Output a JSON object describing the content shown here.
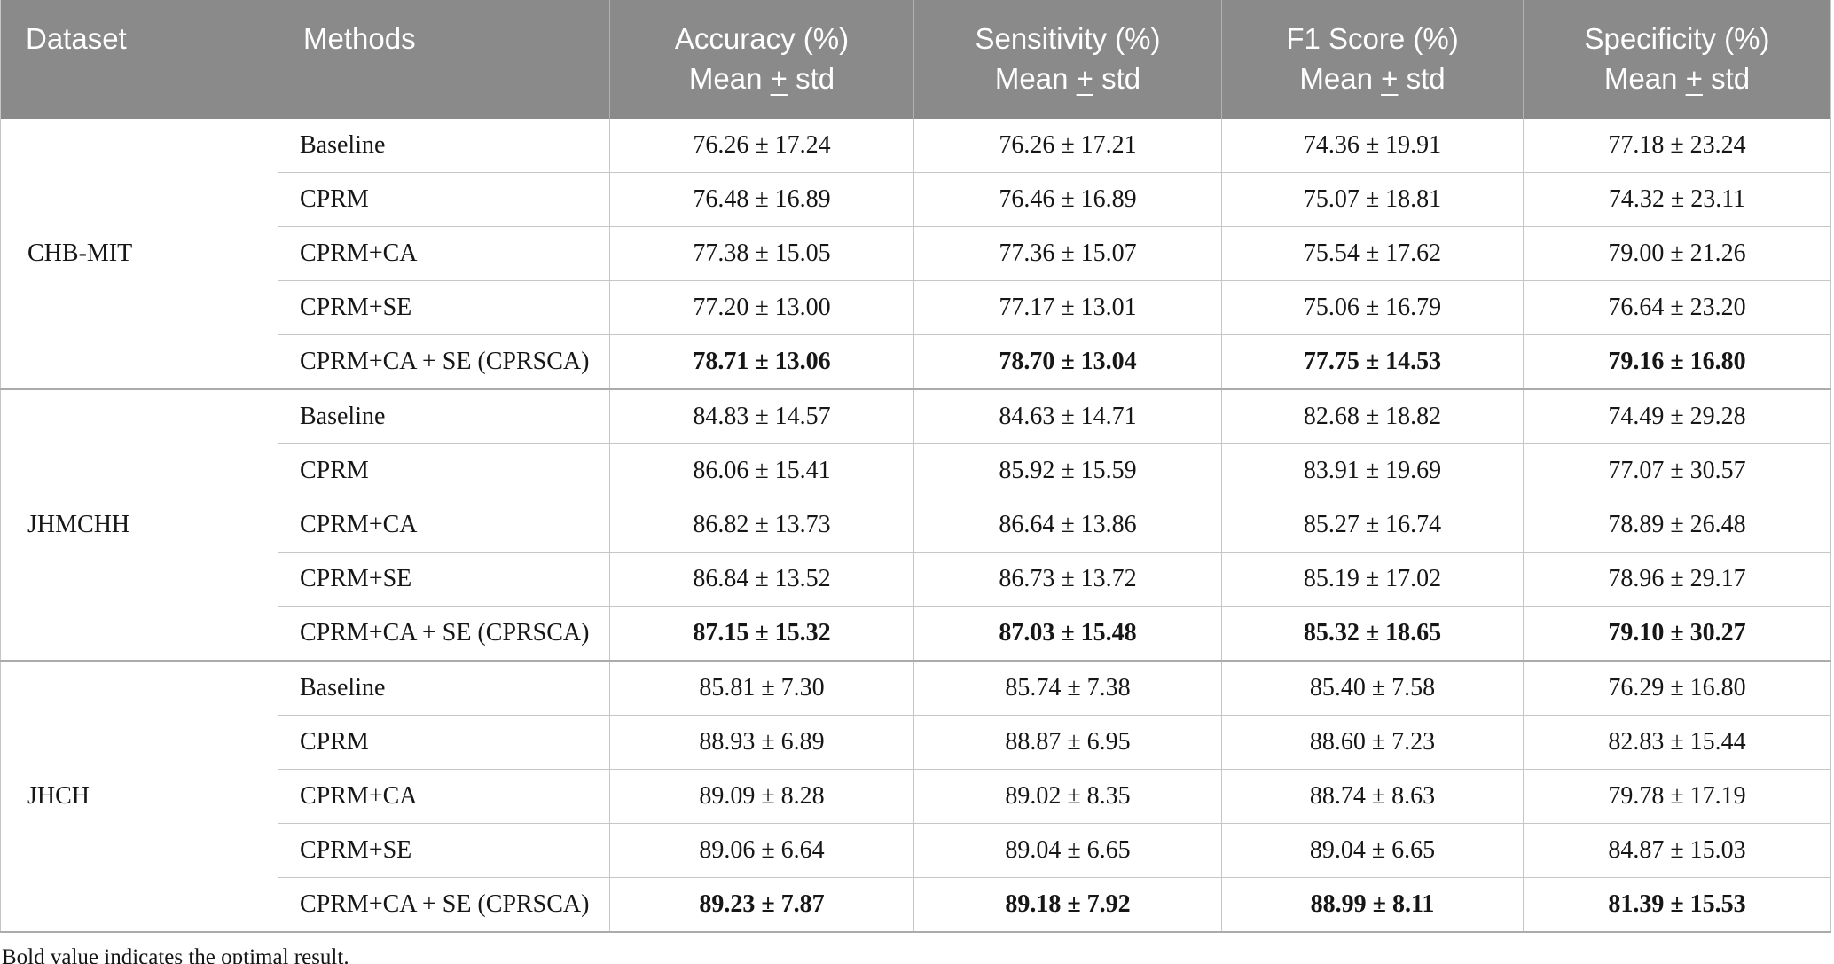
{
  "header": {
    "dataset": "Dataset",
    "methods": "Methods",
    "metrics": [
      {
        "label": "Accuracy (%)",
        "sub_pre": "Mean",
        "sub_plus": "+",
        "sub_post": "std"
      },
      {
        "label": "Sensitivity (%)",
        "sub_pre": "Mean",
        "sub_plus": "+",
        "sub_post": "std"
      },
      {
        "label": "F1 Score (%)",
        "sub_pre": "Mean",
        "sub_plus": "+",
        "sub_post": "std"
      },
      {
        "label": "Specificity (%)",
        "sub_pre": "Mean",
        "sub_plus": "+",
        "sub_post": "std"
      }
    ]
  },
  "colors": {
    "header_bg": "#8a8a8a",
    "header_text": "#ffffff",
    "body_text": "#161616",
    "grid_line": "#c6c6c6",
    "group_line": "#ababab"
  },
  "chart_data": {
    "type": "table",
    "columns": [
      "Dataset",
      "Methods",
      "Accuracy (%) Mean ± std",
      "Sensitivity (%) Mean ± std",
      "F1 Score (%) Mean ± std",
      "Specificity (%) Mean ± std"
    ]
  },
  "groups": [
    {
      "dataset": "CHB-MIT",
      "rows": [
        {
          "method": "Baseline",
          "accuracy": "76.26 ± 17.24",
          "sensitivity": "76.26 ± 17.21",
          "f1": "74.36 ± 19.91",
          "specificity": "77.18 ± 23.24",
          "bold": false
        },
        {
          "method": "CPRM",
          "accuracy": "76.48 ± 16.89",
          "sensitivity": "76.46 ± 16.89",
          "f1": "75.07 ± 18.81",
          "specificity": "74.32 ± 23.11",
          "bold": false
        },
        {
          "method": "CPRM+CA",
          "accuracy": "77.38 ± 15.05",
          "sensitivity": "77.36 ± 15.07",
          "f1": "75.54 ± 17.62",
          "specificity": "79.00 ± 21.26",
          "bold": false
        },
        {
          "method": "CPRM+SE",
          "accuracy": "77.20 ± 13.00",
          "sensitivity": "77.17 ± 13.01",
          "f1": "75.06 ± 16.79",
          "specificity": "76.64 ± 23.20",
          "bold": false
        },
        {
          "method": "CPRM+CA + SE (CPRSCA)",
          "accuracy": "78.71 ± 13.06",
          "sensitivity": "78.70 ± 13.04",
          "f1": "77.75 ± 14.53",
          "specificity": "79.16 ± 16.80",
          "bold": true
        }
      ]
    },
    {
      "dataset": "JHMCHH",
      "rows": [
        {
          "method": "Baseline",
          "accuracy": "84.83 ± 14.57",
          "sensitivity": "84.63 ± 14.71",
          "f1": "82.68 ± 18.82",
          "specificity": "74.49 ± 29.28",
          "bold": false
        },
        {
          "method": "CPRM",
          "accuracy": "86.06 ± 15.41",
          "sensitivity": "85.92 ± 15.59",
          "f1": "83.91 ± 19.69",
          "specificity": "77.07 ± 30.57",
          "bold": false
        },
        {
          "method": "CPRM+CA",
          "accuracy": "86.82 ± 13.73",
          "sensitivity": "86.64 ± 13.86",
          "f1": "85.27 ± 16.74",
          "specificity": "78.89 ± 26.48",
          "bold": false
        },
        {
          "method": "CPRM+SE",
          "accuracy": "86.84 ± 13.52",
          "sensitivity": "86.73 ± 13.72",
          "f1": "85.19 ± 17.02",
          "specificity": "78.96 ± 29.17",
          "bold": false
        },
        {
          "method": "CPRM+CA + SE (CPRSCA)",
          "accuracy": "87.15 ± 15.32",
          "sensitivity": "87.03 ± 15.48",
          "f1": "85.32 ± 18.65",
          "specificity": "79.10 ± 30.27",
          "bold": true
        }
      ]
    },
    {
      "dataset": "JHCH",
      "rows": [
        {
          "method": "Baseline",
          "accuracy": "85.81 ± 7.30",
          "sensitivity": "85.74 ± 7.38",
          "f1": "85.40 ± 7.58",
          "specificity": "76.29 ± 16.80",
          "bold": false
        },
        {
          "method": "CPRM",
          "accuracy": "88.93 ± 6.89",
          "sensitivity": "88.87 ± 6.95",
          "f1": "88.60 ± 7.23",
          "specificity": "82.83 ± 15.44",
          "bold": false
        },
        {
          "method": "CPRM+CA",
          "accuracy": "89.09 ± 8.28",
          "sensitivity": "89.02 ± 8.35",
          "f1": "88.74 ± 8.63",
          "specificity": "79.78 ± 17.19",
          "bold": false
        },
        {
          "method": "CPRM+SE",
          "accuracy": "89.06 ± 6.64",
          "sensitivity": "89.04 ± 6.65",
          "f1": "89.04 ± 6.65",
          "specificity": "84.87 ± 15.03",
          "bold": false
        },
        {
          "method": "CPRM+CA + SE (CPRSCA)",
          "accuracy": "89.23 ± 7.87",
          "sensitivity": "89.18 ± 7.92",
          "f1": "88.99 ± 8.11",
          "specificity": "81.39 ± 15.53",
          "bold": true
        }
      ]
    }
  ],
  "footnote": "Bold value indicates the optimal result."
}
